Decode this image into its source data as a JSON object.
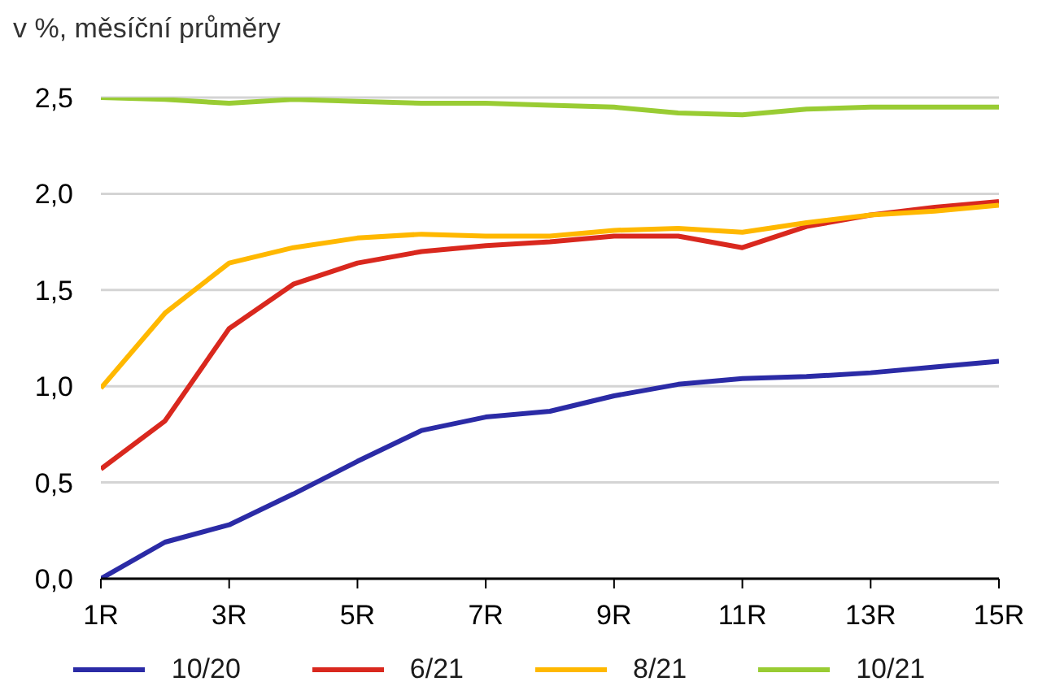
{
  "chart_data": {
    "type": "line",
    "subtitle": "v %, měsíční průměry",
    "x": [
      1,
      2,
      3,
      4,
      5,
      6,
      7,
      8,
      9,
      10,
      11,
      12,
      13,
      14,
      15
    ],
    "series": [
      {
        "name": "10/20",
        "color": "#2b2ba6",
        "values": [
          0.0,
          0.19,
          0.28,
          0.44,
          0.61,
          0.77,
          0.84,
          0.87,
          0.95,
          1.01,
          1.04,
          1.05,
          1.07,
          1.1,
          1.13
        ]
      },
      {
        "name": "6/21",
        "color": "#d9281e",
        "values": [
          0.57,
          0.82,
          1.3,
          1.53,
          1.64,
          1.7,
          1.73,
          1.75,
          1.78,
          1.78,
          1.72,
          1.83,
          1.89,
          1.93,
          1.96
        ]
      },
      {
        "name": "8/21",
        "color": "#ffb800",
        "values": [
          0.99,
          1.38,
          1.64,
          1.72,
          1.77,
          1.79,
          1.78,
          1.78,
          1.81,
          1.82,
          1.8,
          1.85,
          1.89,
          1.91,
          1.94
        ]
      },
      {
        "name": "10/21",
        "color": "#99cc33",
        "values": [
          2.5,
          2.49,
          2.47,
          2.49,
          2.48,
          2.47,
          2.47,
          2.46,
          2.45,
          2.42,
          2.41,
          2.44,
          2.45,
          2.45,
          2.45
        ]
      }
    ],
    "xlim": [
      1,
      15
    ],
    "xticks": [
      {
        "value": 1,
        "label": "1R"
      },
      {
        "value": 3,
        "label": "3R"
      },
      {
        "value": 5,
        "label": "5R"
      },
      {
        "value": 7,
        "label": "7R"
      },
      {
        "value": 9,
        "label": "9R"
      },
      {
        "value": 11,
        "label": "11R"
      },
      {
        "value": 13,
        "label": "13R"
      },
      {
        "value": 15,
        "label": "15R"
      }
    ],
    "ylim": [
      0,
      2.5
    ],
    "yticks": [
      {
        "value": 0,
        "label": "0,0"
      },
      {
        "value": 0.5,
        "label": "0,5"
      },
      {
        "value": 1,
        "label": "1,0"
      },
      {
        "value": 1.5,
        "label": "1,5"
      },
      {
        "value": 2,
        "label": "2,0"
      },
      {
        "value": 2.5,
        "label": "2,5"
      }
    ],
    "grid": "y",
    "legend": "bottom",
    "line_style": "solid"
  }
}
